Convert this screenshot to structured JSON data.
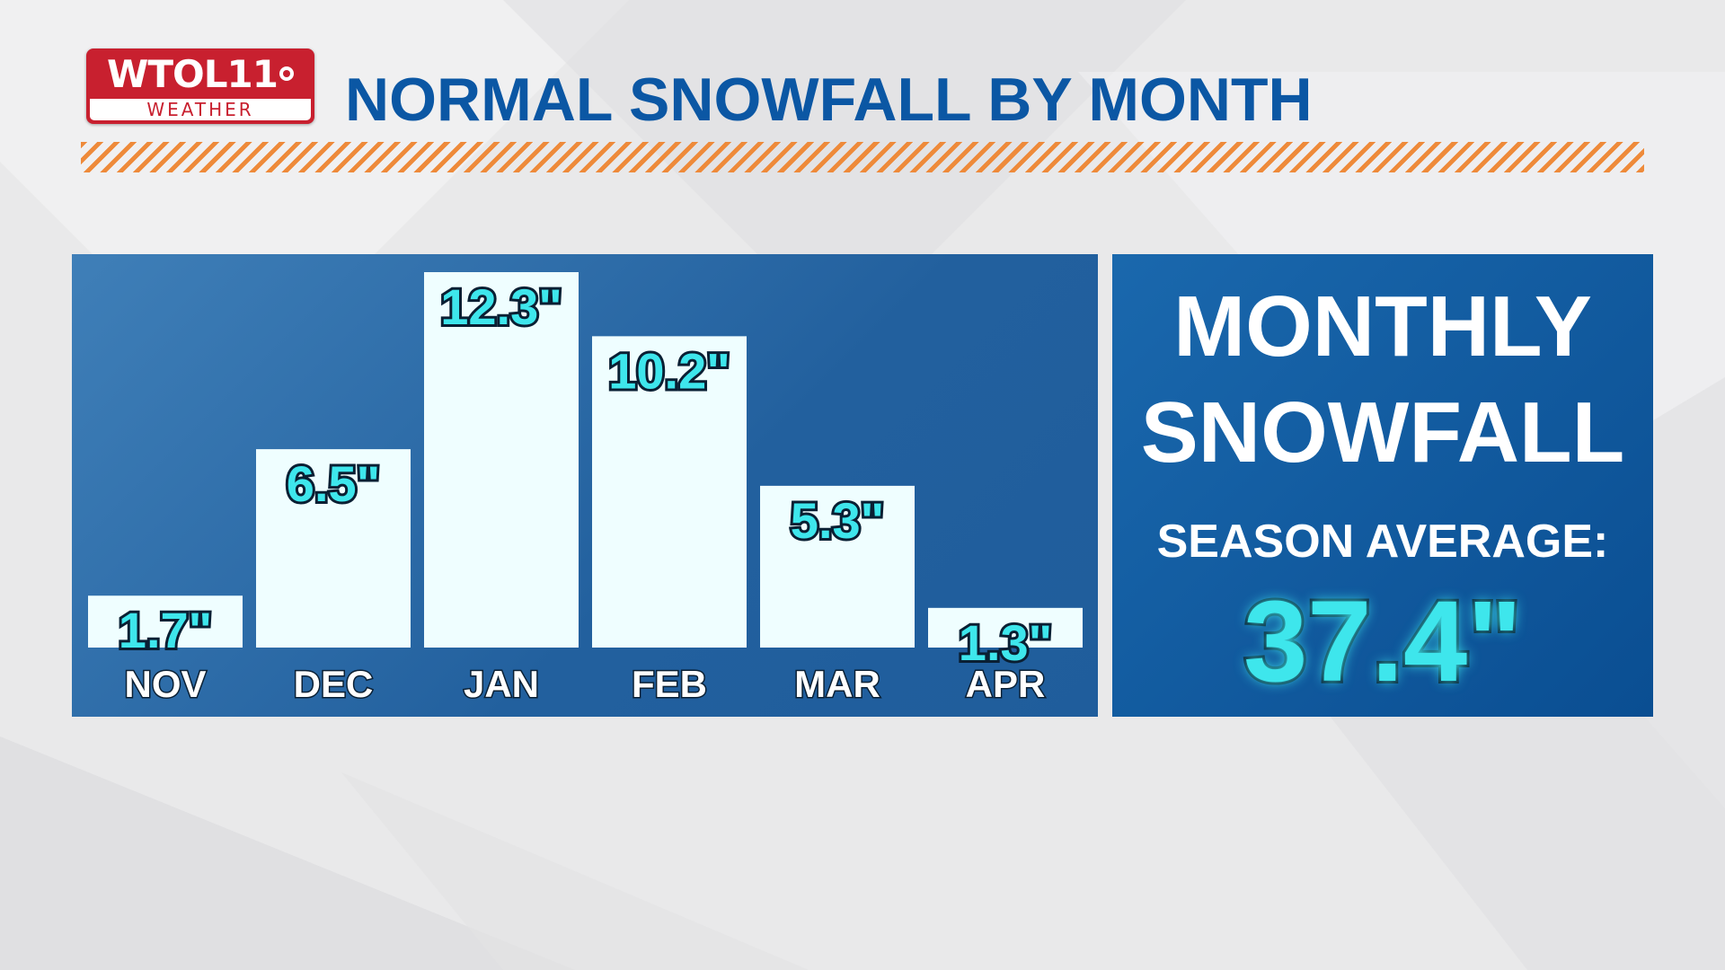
{
  "header": {
    "logo_main": "WTOL11",
    "logo_sub": "WEATHER",
    "title": "NORMAL SNOWFALL BY MONTH"
  },
  "summary": {
    "line1": "MONTHLY",
    "line2": "SNOWFALL",
    "avg_label": "SEASON AVERAGE:",
    "avg_value": "37.4\""
  },
  "colors": {
    "title": "#0b57a4",
    "bar_fill": "#effeff",
    "value_text": "#3ee6ec",
    "brand_red": "#c8202f",
    "accent_orange": "#ee8a3a"
  },
  "chart_data": {
    "type": "bar",
    "title": "NORMAL SNOWFALL BY MONTH",
    "categories": [
      "NOV",
      "DEC",
      "JAN",
      "FEB",
      "MAR",
      "APR"
    ],
    "values": [
      1.7,
      6.5,
      12.3,
      10.2,
      5.3,
      1.3
    ],
    "value_labels": [
      "1.7\"",
      "6.5\"",
      "12.3\"",
      "10.2\"",
      "5.3\"",
      "1.3\""
    ],
    "unit": "in",
    "ylim": [
      0,
      12.3
    ],
    "grid": false,
    "legend": "none"
  }
}
